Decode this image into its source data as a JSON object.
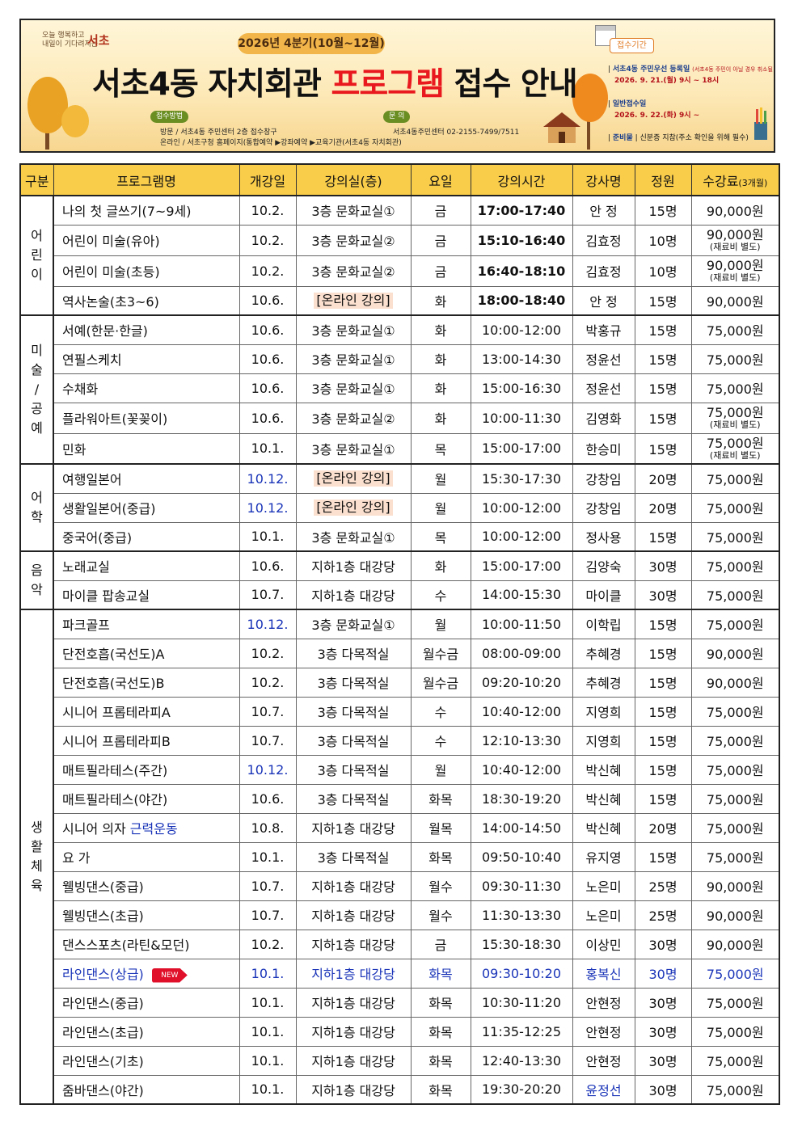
{
  "banner": {
    "logo_slogan_1": "오늘 행복하고",
    "logo_slogan_2": "내일이 기다려지는",
    "logo_name": "서초",
    "period": "2026년 4분기(10월~12월)",
    "title_part1": "서초4동 자치회관 ",
    "title_part2": "프로그램",
    "title_part3": " 접수 안내",
    "method_tag": "접수방법",
    "method_visit": "방문 / 서초4동 주민센터 2층 접수창구",
    "method_online": "온라인 / 서초구청 홈페이지(통합예약 ▶강좌예약 ▶교육기관(서초4동 자치회관)",
    "contact_tag": "문 의",
    "contact_text": "서초4동주민센터 02-2155-7499/7511",
    "receipt_label": "접수기간",
    "resident_title": "서초4동 주민우선 등록일",
    "resident_note": "(서초4동 주민이 아닐 경우 취소될 수 있음)",
    "resident_date": "2026. 9. 21.(월) 9시 ~ 18시",
    "general_title": "일반접수일",
    "general_date": "2026. 9. 22.(화) 9시 ~",
    "prep_title": "준비물",
    "prep_text": "신분증 지참(주소 확인을 위해 필수)"
  },
  "table": {
    "headers": [
      "구분",
      "프로그램명",
      "개강일",
      "강의실(층)",
      "요일",
      "강의시간",
      "강사명",
      "정원",
      "수강료"
    ],
    "fee_unit": "(3개월)",
    "materials_note": "(재료비 별도)",
    "groups": [
      {
        "category_chars": [
          "어",
          "린",
          "이"
        ],
        "rows": [
          {
            "name": "나의 첫 글쓰기(7~9세)",
            "start": "10.2.",
            "room": "3층 문화교실①",
            "day": "금",
            "time": "17:00-17:40",
            "teacher": "안  정",
            "cap": "15명",
            "fee": "90,000원"
          },
          {
            "name": "어린이 미술(유아)",
            "start": "10.2.",
            "room": "3층 문화교실②",
            "day": "금",
            "time": "15:10-16:40",
            "teacher": "김효정",
            "cap": "10명",
            "fee": "90,000원",
            "note": true
          },
          {
            "name": "어린이 미술(초등)",
            "start": "10.2.",
            "room": "3층 문화교실②",
            "day": "금",
            "time": "16:40-18:10",
            "teacher": "김효정",
            "cap": "10명",
            "fee": "90,000원",
            "note": true
          },
          {
            "name": "역사논술(초3~6)",
            "start": "10.6.",
            "room": "[온라인 강의]",
            "online": true,
            "day": "화",
            "time": "18:00-18:40",
            "teacher": "안  정",
            "cap": "15명",
            "fee": "90,000원"
          }
        ]
      },
      {
        "category_chars": [
          "미",
          "술",
          "/",
          "공",
          "예"
        ],
        "rows": [
          {
            "name": "서예(한문·한글)",
            "start": "10.6.",
            "room": "3층 문화교실①",
            "day": "화",
            "time": "10:00-12:00",
            "teacher": "박홍규",
            "cap": "15명",
            "fee": "75,000원"
          },
          {
            "name": "연필스케치",
            "start": "10.6.",
            "room": "3층 문화교실①",
            "day": "화",
            "time": "13:00-14:30",
            "teacher": "정윤선",
            "cap": "15명",
            "fee": "75,000원"
          },
          {
            "name": "수채화",
            "start": "10.6.",
            "room": "3층 문화교실①",
            "day": "화",
            "time": "15:00-16:30",
            "teacher": "정윤선",
            "cap": "15명",
            "fee": "75,000원"
          },
          {
            "name": "플라워아트(꽃꽂이)",
            "start": "10.6.",
            "room": "3층 문화교실②",
            "day": "화",
            "time": "10:00-11:30",
            "teacher": "김영화",
            "cap": "15명",
            "fee": "75,000원",
            "note": true
          },
          {
            "name": "민화",
            "start": "10.1.",
            "room": "3층 문화교실①",
            "day": "목",
            "time": "15:00-17:00",
            "teacher": "한승미",
            "cap": "15명",
            "fee": "75,000원",
            "note": true
          }
        ]
      },
      {
        "category_chars": [
          "어",
          "학"
        ],
        "rows": [
          {
            "name": "여행일본어",
            "start": "10.12.",
            "start_blue": true,
            "room": "[온라인 강의]",
            "online": true,
            "day": "월",
            "time": "15:30-17:30",
            "teacher": "강창임",
            "cap": "20명",
            "fee": "75,000원"
          },
          {
            "name": "생활일본어(중급)",
            "start": "10.12.",
            "start_blue": true,
            "room": "[온라인 강의]",
            "online": true,
            "day": "월",
            "time": "10:00-12:00",
            "teacher": "강창임",
            "cap": "20명",
            "fee": "75,000원"
          },
          {
            "name": "중국어(중급)",
            "start": "10.1.",
            "room": "3층 문화교실①",
            "day": "목",
            "time": "10:00-12:00",
            "teacher": "정사용",
            "cap": "15명",
            "fee": "75,000원"
          }
        ]
      },
      {
        "category_chars": [
          "음",
          "악"
        ],
        "rows": [
          {
            "name": "노래교실",
            "start": "10.6.",
            "room": "지하1층 대강당",
            "day": "화",
            "time": "15:00-17:00",
            "teacher": "김양숙",
            "cap": "30명",
            "fee": "75,000원"
          },
          {
            "name": "마이클 팝송교실",
            "start": "10.7.",
            "room": "지하1층 대강당",
            "day": "수",
            "time": "14:00-15:30",
            "teacher": "마이클",
            "cap": "30명",
            "fee": "75,000원"
          }
        ]
      },
      {
        "category_chars": [
          "생",
          "활",
          "체",
          "육"
        ],
        "rows": [
          {
            "name": "파크골프",
            "start": "10.12.",
            "start_blue": true,
            "room": "3층 문화교실①",
            "day": "월",
            "time": "10:00-11:50",
            "teacher": "이학립",
            "cap": "15명",
            "fee": "75,000원"
          },
          {
            "name": "단전호흡(국선도)A",
            "start": "10.2.",
            "room": "3층 다목적실",
            "day": "월수금",
            "time": "08:00-09:00",
            "teacher": "추혜경",
            "cap": "15명",
            "fee": "90,000원"
          },
          {
            "name": "단전호흡(국선도)B",
            "start": "10.2.",
            "room": "3층 다목적실",
            "day": "월수금",
            "time": "09:20-10:20",
            "teacher": "추혜경",
            "cap": "15명",
            "fee": "90,000원"
          },
          {
            "name": "시니어 프롭테라피A",
            "start": "10.7.",
            "room": "3층 다목적실",
            "day": "수",
            "time": "10:40-12:00",
            "teacher": "지영희",
            "cap": "15명",
            "fee": "75,000원"
          },
          {
            "name": "시니어 프롭테라피B",
            "start": "10.7.",
            "room": "3층 다목적실",
            "day": "수",
            "time": "12:10-13:30",
            "teacher": "지영희",
            "cap": "15명",
            "fee": "75,000원"
          },
          {
            "name": "매트필라테스(주간)",
            "start": "10.12.",
            "start_blue": true,
            "room": "3층 다목적실",
            "day": "월",
            "time": "10:40-12:00",
            "teacher": "박신혜",
            "cap": "15명",
            "fee": "75,000원"
          },
          {
            "name": "매트필라테스(야간)",
            "start": "10.6.",
            "room": "3층 다목적실",
            "day": "화목",
            "time": "18:30-19:20",
            "teacher": "박신혜",
            "cap": "15명",
            "fee": "75,000원"
          },
          {
            "name": "시니어 의자 ",
            "name_blue": "근력운동",
            "start": "10.8.",
            "room": "지하1층 대강당",
            "day": "월목",
            "time": "14:00-14:50",
            "teacher": "박신혜",
            "cap": "20명",
            "fee": "75,000원"
          },
          {
            "name": "요  가",
            "start": "10.1.",
            "room": "3층 다목적실",
            "day": "화목",
            "time": "09:50-10:40",
            "teacher": "유지영",
            "cap": "15명",
            "fee": "75,000원"
          },
          {
            "name": "웰빙댄스(중급)",
            "start": "10.7.",
            "room": "지하1층 대강당",
            "day": "월수",
            "time": "09:30-11:30",
            "teacher": "노은미",
            "cap": "25명",
            "fee": "90,000원"
          },
          {
            "name": "웰빙댄스(초급)",
            "start": "10.7.",
            "room": "지하1층 대강당",
            "day": "월수",
            "time": "11:30-13:30",
            "teacher": "노은미",
            "cap": "25명",
            "fee": "90,000원"
          },
          {
            "name": "댄스스포츠(라틴&모던)",
            "start": "10.2.",
            "room": "지하1층 대강당",
            "day": "금",
            "time": "15:30-18:30",
            "teacher": "이상민",
            "cap": "30명",
            "fee": "90,000원"
          },
          {
            "name": "라인댄스(상급)",
            "start": "10.1.",
            "room": "지하1층 대강당",
            "day": "화목",
            "time": "09:30-10:20",
            "teacher": "홍복신",
            "cap": "30명",
            "fee": "75,000원",
            "all_blue": true,
            "new": "NEW"
          },
          {
            "name": "라인댄스(중급)",
            "start": "10.1.",
            "room": "지하1층 대강당",
            "day": "화목",
            "time": "10:30-11:20",
            "teacher": "안현정",
            "cap": "30명",
            "fee": "75,000원"
          },
          {
            "name": "라인댄스(초급)",
            "start": "10.1.",
            "room": "지하1층 대강당",
            "day": "화목",
            "time": "11:35-12:25",
            "teacher": "안현정",
            "cap": "30명",
            "fee": "75,000원"
          },
          {
            "name": "라인댄스(기초)",
            "start": "10.1.",
            "room": "지하1층 대강당",
            "day": "화목",
            "time": "12:40-13:30",
            "teacher": "안현정",
            "cap": "30명",
            "fee": "75,000원"
          },
          {
            "name": "줌바댄스(야간)",
            "start": "10.1.",
            "room": "지하1층 대강당",
            "day": "화목",
            "time": "19:30-20:20",
            "teacher": "윤정선",
            "teacher_blue": true,
            "cap": "30명",
            "fee": "75,000원"
          }
        ]
      }
    ]
  },
  "colors": {
    "header_bg": "#f9cd4a",
    "title_red": "#e8181e",
    "blue_text": "#1a34b8",
    "online_bg": "#fbe0cf",
    "new_badge": "#e0102b"
  }
}
